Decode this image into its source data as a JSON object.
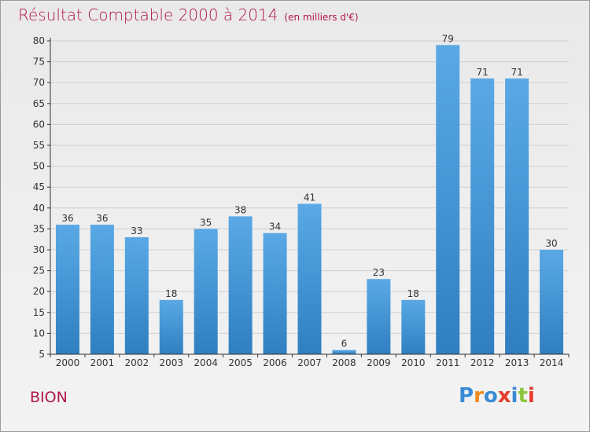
{
  "title": "Résultat Comptable 2000 à 2014",
  "unit": "(en milliers d'€)",
  "town": "BION",
  "logo": {
    "text": "Proxiti",
    "letters": [
      {
        "ch": "P",
        "color": "#3a8bd5"
      },
      {
        "ch": "r",
        "color": "#f08a1c"
      },
      {
        "ch": "o",
        "color": "#3a8bd5"
      },
      {
        "ch": "x",
        "color": "#e53a2a"
      },
      {
        "ch": "i",
        "color": "#3a8bd5"
      },
      {
        "ch": "t",
        "color": "#8cc63f"
      },
      {
        "ch": "i",
        "color": "#e53a2a"
      }
    ]
  },
  "colors": {
    "title": "#b0174e",
    "bar_top": "#5aa9e6",
    "bar_bottom": "#2f7fc1",
    "axis": "#333333",
    "grid": "#cfcfcf"
  },
  "chart_data": {
    "type": "bar",
    "categories": [
      "2000",
      "2001",
      "2002",
      "2003",
      "2004",
      "2005",
      "2006",
      "2007",
      "2008",
      "2009",
      "2010",
      "2011",
      "2012",
      "2013",
      "2014"
    ],
    "values": [
      36,
      36,
      33,
      18,
      35,
      38,
      34,
      41,
      6,
      23,
      18,
      79,
      71,
      71,
      30
    ],
    "ylim": [
      5,
      80
    ],
    "yticks": [
      5,
      10,
      15,
      20,
      25,
      30,
      35,
      40,
      45,
      50,
      55,
      60,
      65,
      70,
      75,
      80
    ],
    "grid": "horizontal",
    "data_labels": true
  }
}
